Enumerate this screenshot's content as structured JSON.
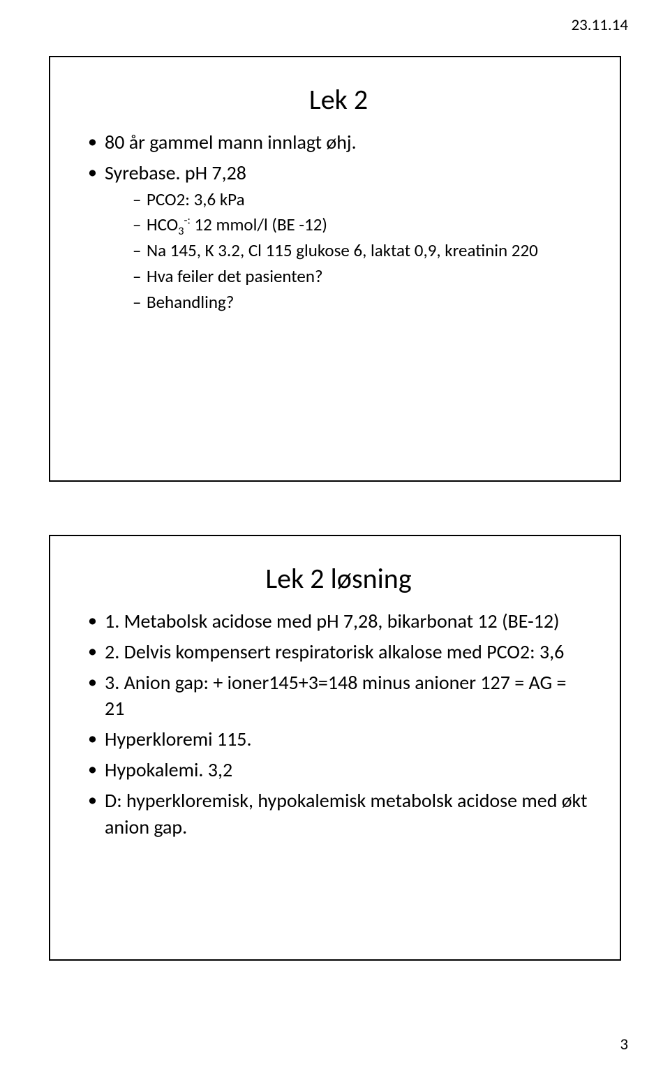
{
  "header_date": "23.11.14",
  "page_number": "3",
  "slide1": {
    "title": "Lek 2",
    "items": [
      {
        "raw": "80 år gammel mann innlagt øhj."
      },
      {
        "raw": "Syrebase. pH 7,28",
        "sub": [
          {
            "raw": "PCO2: 3,6 kPa"
          },
          {
            "prefix": "HCO",
            "sub": "3",
            "sup": "-:",
            "suffix": " 12 mmol/l (BE -12)"
          },
          {
            "raw": "Na 145, K 3.2, Cl 115  glukose 6, laktat 0,9, kreatinin 220"
          },
          {
            "raw": "Hva feiler det pasienten?"
          },
          {
            "raw": "Behandling?"
          }
        ]
      }
    ]
  },
  "slide2": {
    "title": "Lek 2 løsning",
    "items": [
      {
        "raw": "1. Metabolsk acidose med pH 7,28, bikarbonat 12 (BE-12)"
      },
      {
        "raw": "2. Delvis kompensert respiratorisk alkalose med PCO2: 3,6"
      },
      {
        "raw": "3. Anion gap: + ioner145+3=148 minus anioner 127 = AG = 21"
      },
      {
        "raw": "Hyperkloremi 115."
      },
      {
        "raw": "Hypokalemi. 3,2"
      },
      {
        "raw": "D: hyperkloremisk, hypokalemisk metabolsk acidose med økt anion gap."
      }
    ]
  }
}
